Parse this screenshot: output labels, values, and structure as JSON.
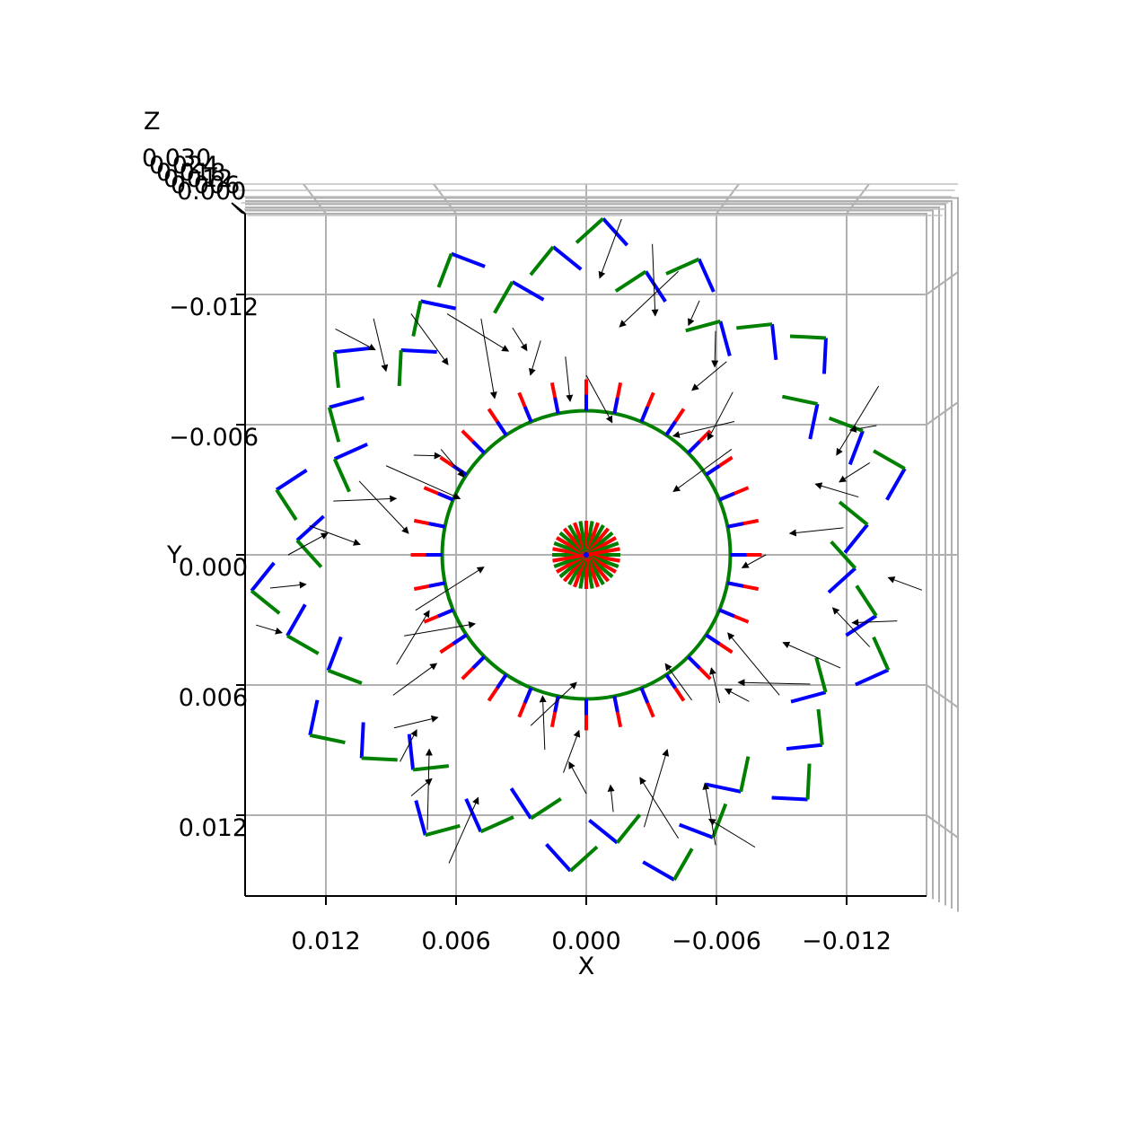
{
  "chart_data": {
    "type": "3d-quiver",
    "title": "",
    "view": "top-down",
    "xlabel": "X",
    "ylabel": "Y",
    "zlabel": "Z",
    "x_ticks": [
      0.012,
      0.006,
      0.0,
      -0.006,
      -0.012
    ],
    "x_tick_labels": [
      "0.012",
      "0.006",
      "0.000",
      "−0.006",
      "−0.012"
    ],
    "y_ticks": [
      -0.012,
      -0.006,
      0.0,
      0.006,
      0.012
    ],
    "y_tick_labels": [
      "−0.012",
      "−0.006",
      "0.000",
      "0.006",
      "0.012"
    ],
    "z_tick_labels": [
      "0.030",
      "0.024",
      "0.018",
      "0.012",
      "0.006",
      "0.000"
    ],
    "xlim": [
      0.0156,
      -0.0156
    ],
    "ylim": [
      -0.0156,
      0.0156
    ],
    "inner_ring_radius_m": 0.0,
    "middle_ring_radius_m": 0.008,
    "outer_ring_radius_m": 0.0155,
    "frame_colors": {
      "x_axis": "#ff0000",
      "y_axis": "#008000",
      "z_axis": "#0000ff"
    },
    "arrow_color": "#000000",
    "grid": true
  }
}
